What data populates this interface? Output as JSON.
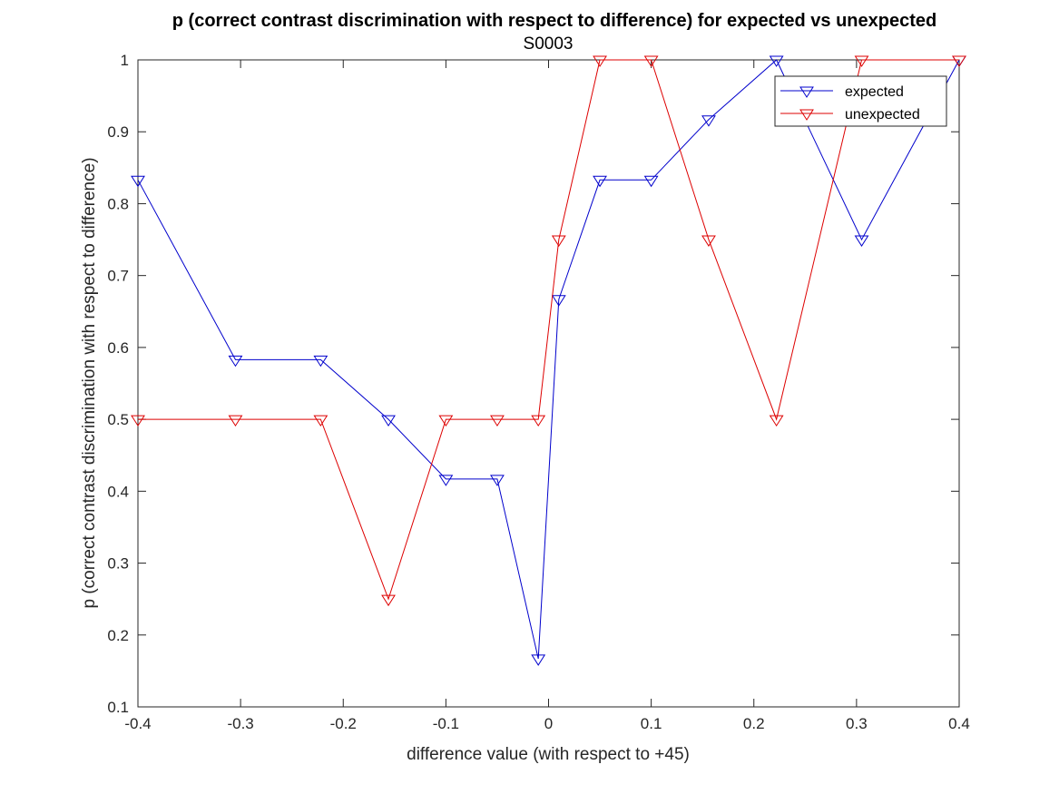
{
  "chart_data": {
    "type": "line",
    "title": "p (correct contrast discrimination with respect to difference) for expected vs unexpected",
    "subtitle": "S0003",
    "xlabel": "difference value (with respect to +45)",
    "ylabel": "p (correct contrast discrimination with respect to difference)",
    "xlim": [
      -0.4,
      0.4
    ],
    "ylim": [
      0.1,
      1
    ],
    "xticks": [
      -0.4,
      -0.3,
      -0.2,
      -0.1,
      0,
      0.1,
      0.2,
      0.3,
      0.4
    ],
    "xtick_labels": [
      "-0.4",
      "-0.3",
      "-0.2",
      "-0.1",
      "0",
      "0.1",
      "0.2",
      "0.3",
      "0.4"
    ],
    "yticks": [
      0.1,
      0.2,
      0.3,
      0.4,
      0.5,
      0.6,
      0.7,
      0.8,
      0.9,
      1
    ],
    "ytick_labels": [
      "0.1",
      "0.2",
      "0.3",
      "0.4",
      "0.5",
      "0.6",
      "0.7",
      "0.8",
      "0.9",
      "1"
    ],
    "grid": false,
    "legend_position": "top-right",
    "marker": "triangle-down",
    "x": [
      -0.4,
      -0.305,
      -0.222,
      -0.156,
      -0.1,
      -0.05,
      -0.01,
      0.01,
      0.05,
      0.1,
      0.156,
      0.222,
      0.305,
      0.4
    ],
    "series": [
      {
        "name": "expected",
        "color": "#0000cc",
        "values": [
          0.833,
          0.583,
          0.583,
          0.5,
          0.417,
          0.417,
          0.167,
          0.667,
          0.833,
          0.833,
          0.917,
          1.0,
          0.75,
          1.0
        ]
      },
      {
        "name": "unexpected",
        "color": "#dd0000",
        "values": [
          0.5,
          0.5,
          0.5,
          0.25,
          0.5,
          0.5,
          0.5,
          0.75,
          1.0,
          1.0,
          0.75,
          0.5,
          1.0,
          1.0
        ]
      }
    ]
  }
}
